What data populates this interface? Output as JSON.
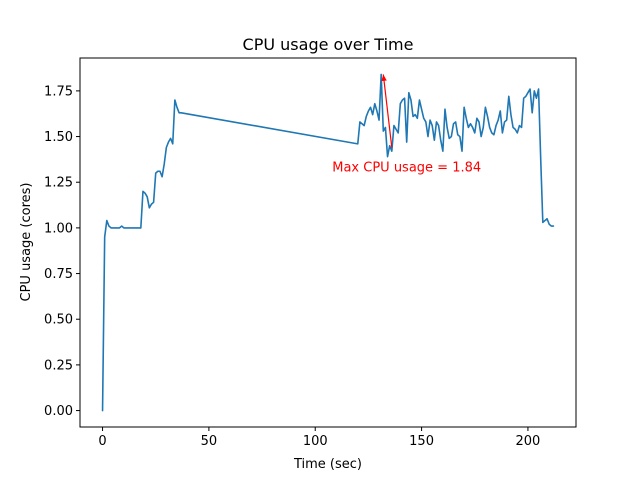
{
  "chart_data": {
    "type": "line",
    "title": "CPU usage over Time",
    "xlabel": "Time (sec)",
    "ylabel": "CPU usage (cores)",
    "xlim": [
      -10.6,
      222.6
    ],
    "ylim": [
      -0.09,
      1.93
    ],
    "xticks": [
      0,
      50,
      100,
      150,
      200
    ],
    "yticks": [
      0.0,
      0.25,
      0.5,
      0.75,
      1.0,
      1.25,
      1.5,
      1.75
    ],
    "xtick_labels": [
      "0",
      "50",
      "100",
      "150",
      "200"
    ],
    "ytick_labels": [
      "0.00",
      "0.25",
      "0.50",
      "0.75",
      "1.00",
      "1.25",
      "1.50",
      "1.75"
    ],
    "grid": false,
    "line_color": "#1f77b4",
    "series": [
      {
        "name": "CPU usage",
        "x": [
          0,
          1,
          2,
          3,
          4,
          6,
          8,
          9,
          10,
          12,
          14,
          16,
          17,
          18,
          19,
          20,
          21,
          22,
          23,
          24,
          25,
          26,
          27,
          28,
          29,
          30,
          31,
          32,
          33,
          34,
          35,
          36,
          37,
          120,
          121,
          122,
          123,
          124,
          125,
          126,
          127,
          128,
          129,
          130,
          131,
          132,
          133,
          134,
          135,
          136,
          137,
          138,
          139,
          140,
          141,
          142,
          143,
          144,
          145,
          146,
          147,
          148,
          149,
          150,
          151,
          152,
          153,
          154,
          155,
          156,
          157,
          158,
          159,
          160,
          161,
          162,
          163,
          164,
          165,
          166,
          167,
          168,
          169,
          170,
          171,
          172,
          173,
          174,
          175,
          176,
          177,
          178,
          179,
          180,
          181,
          182,
          183,
          184,
          185,
          186,
          187,
          188,
          189,
          190,
          191,
          192,
          193,
          194,
          195,
          196,
          197,
          198,
          199,
          200,
          201,
          202,
          203,
          204,
          205,
          206,
          207,
          208,
          209,
          210,
          211,
          212
        ],
        "y": [
          0.0,
          0.95,
          1.04,
          1.01,
          1.0,
          1.0,
          1.0,
          1.01,
          1.0,
          1.0,
          1.0,
          1.0,
          1.0,
          1.0,
          1.2,
          1.19,
          1.17,
          1.11,
          1.13,
          1.14,
          1.3,
          1.31,
          1.31,
          1.28,
          1.35,
          1.44,
          1.47,
          1.49,
          1.46,
          1.7,
          1.66,
          1.63,
          1.63,
          1.46,
          1.58,
          1.57,
          1.56,
          1.61,
          1.64,
          1.66,
          1.62,
          1.68,
          1.64,
          1.59,
          1.84,
          1.53,
          1.55,
          1.39,
          1.45,
          1.42,
          1.56,
          1.54,
          1.52,
          1.68,
          1.7,
          1.71,
          1.47,
          1.74,
          1.7,
          1.61,
          1.62,
          1.6,
          1.7,
          1.65,
          1.6,
          1.58,
          1.5,
          1.59,
          1.56,
          1.48,
          1.58,
          1.56,
          1.48,
          1.42,
          1.65,
          1.55,
          1.49,
          1.5,
          1.57,
          1.58,
          1.51,
          1.5,
          1.42,
          1.66,
          1.6,
          1.55,
          1.57,
          1.55,
          1.52,
          1.6,
          1.58,
          1.5,
          1.55,
          1.66,
          1.61,
          1.55,
          1.52,
          1.51,
          1.56,
          1.59,
          1.64,
          1.52,
          1.58,
          1.59,
          1.72,
          1.62,
          1.55,
          1.54,
          1.52,
          1.56,
          1.55,
          1.71,
          1.72,
          1.74,
          1.76,
          1.63,
          1.75,
          1.71,
          1.76,
          1.38,
          1.03,
          1.04,
          1.05,
          1.02,
          1.01,
          1.01
        ]
      }
    ],
    "annotation": {
      "text": "Max CPU usage = 1.84",
      "point": [
        132,
        1.84
      ],
      "text_anchor_xy": [
        136,
        1.44
      ],
      "text_xy": [
        108,
        1.33
      ],
      "color": "#ff0000"
    }
  }
}
